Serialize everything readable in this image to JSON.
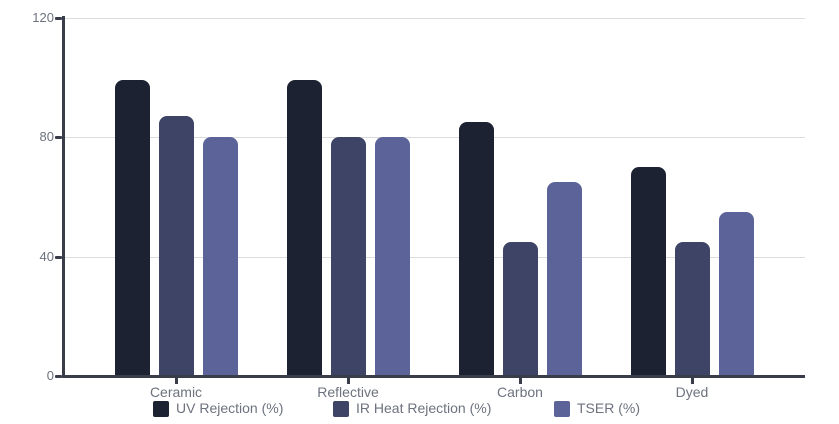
{
  "chart_data": {
    "type": "bar",
    "title": "",
    "categories": [
      "Ceramic",
      "Reflective",
      "Carbon",
      "Dyed"
    ],
    "series": [
      {
        "name": "UV Rejection (%)",
        "color": "#1c2232",
        "values": [
          99,
          99,
          85,
          70
        ]
      },
      {
        "name": "IR Heat Rejection (%)",
        "color": "#3d4466",
        "values": [
          87,
          80,
          45,
          45
        ]
      },
      {
        "name": "TSER (%)",
        "color": "#5b6399",
        "values": [
          80,
          80,
          65,
          55
        ]
      }
    ],
    "xlabel": "",
    "ylabel": "",
    "y_axis": {
      "min": 0,
      "max": 120,
      "ticks": [
        0,
        40,
        80,
        120
      ]
    },
    "grid": true,
    "legend_position": "bottom",
    "axis_color": "#383d49",
    "gridline_color": "#dcdcdc",
    "label_color": "#6d727e"
  }
}
